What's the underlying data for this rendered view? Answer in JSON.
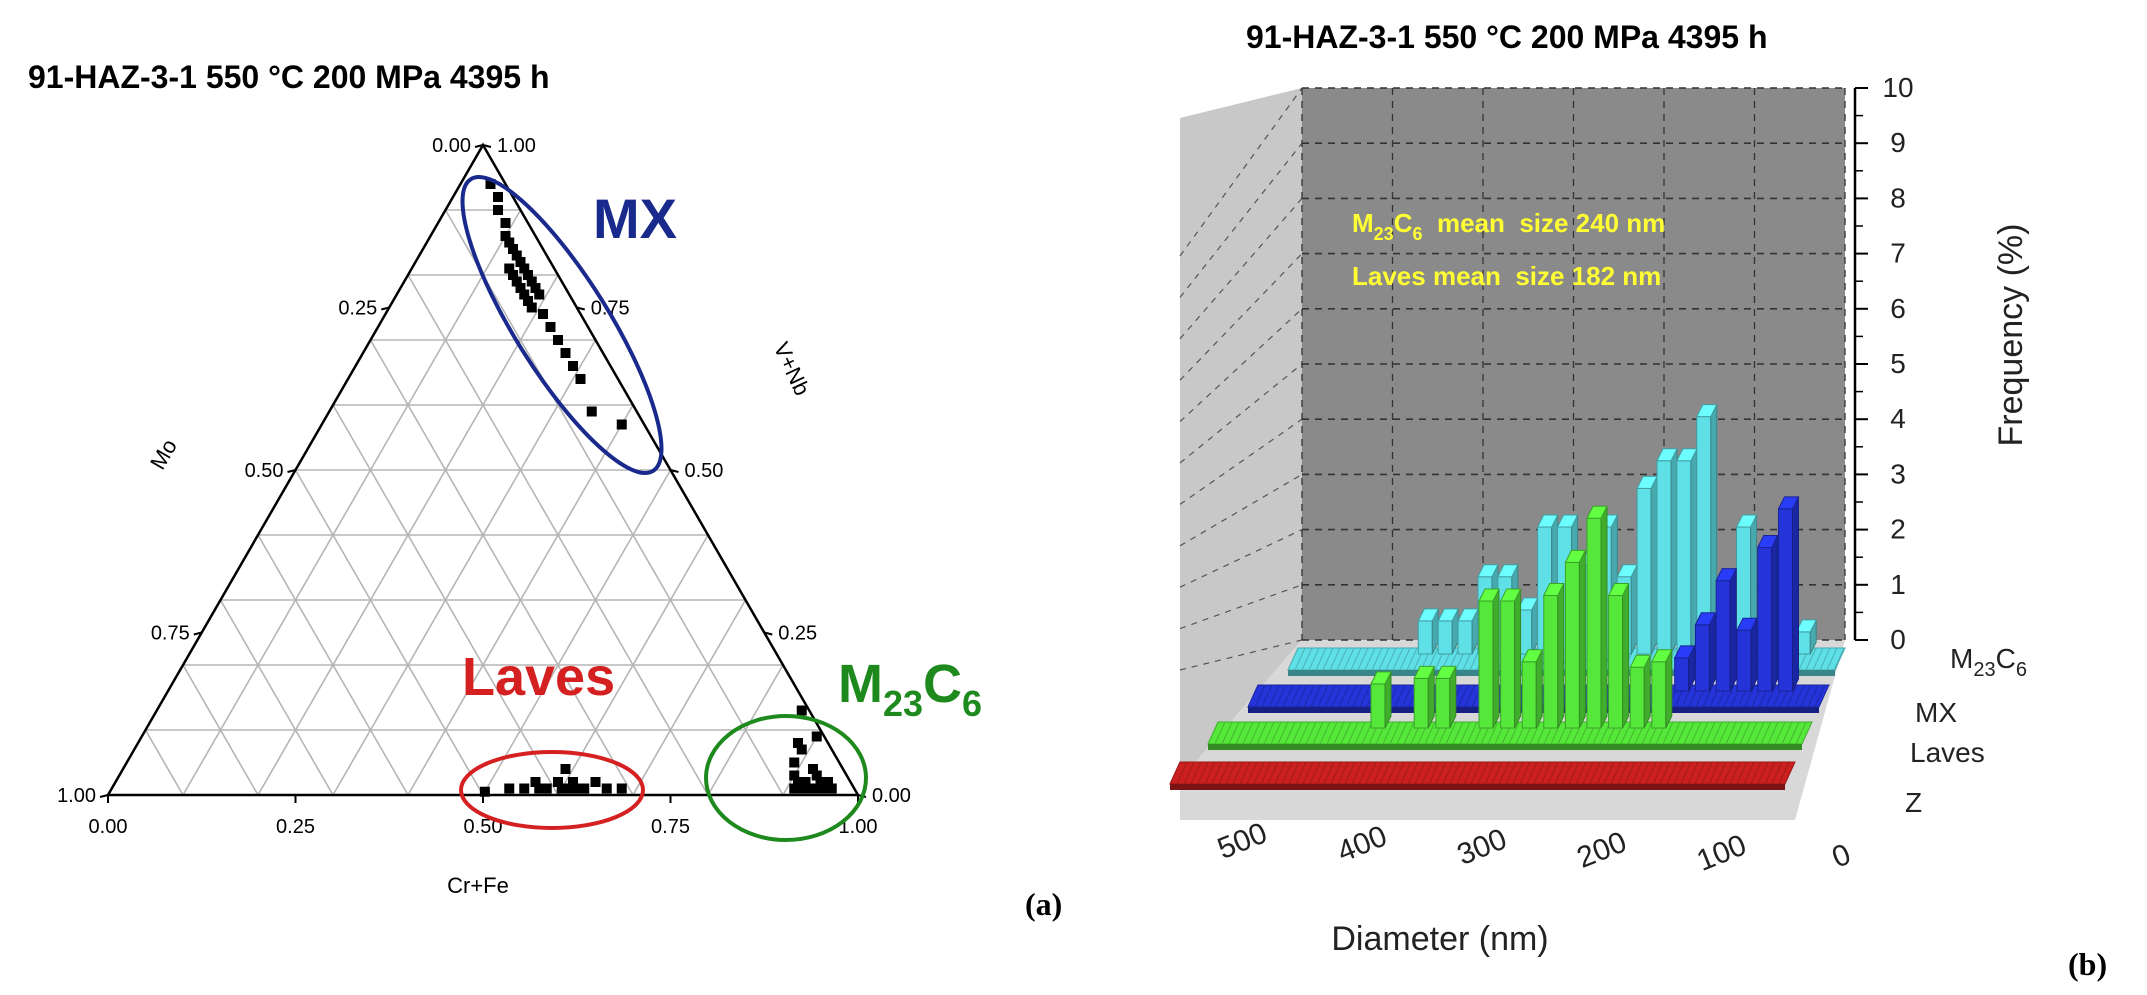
{
  "chart_data": [
    {
      "type": "ternary-scatter",
      "panel_label": "(a)",
      "title": "91-HAZ-3-1 550 °C 200 MPa 4395 h",
      "axes": {
        "bottom": "Cr+Fe",
        "left": "Mo",
        "right": "V+Nb",
        "range": [
          0,
          1
        ],
        "ticks": [
          "0.00",
          "0.25",
          "0.50",
          "0.75",
          "1.00"
        ]
      },
      "groups": [
        {
          "label": "MX",
          "label_sub": "",
          "color": "#1a2a8c",
          "points": [
            [
              0.04,
              0.94
            ],
            [
              0.06,
              0.92
            ],
            [
              0.07,
              0.9
            ],
            [
              0.09,
              0.88
            ],
            [
              0.1,
              0.86
            ],
            [
              0.11,
              0.85
            ],
            [
              0.12,
              0.84
            ],
            [
              0.13,
              0.83
            ],
            [
              0.14,
              0.82
            ],
            [
              0.15,
              0.81
            ],
            [
              0.13,
              0.81
            ],
            [
              0.16,
              0.8
            ],
            [
              0.14,
              0.8
            ],
            [
              0.17,
              0.79
            ],
            [
              0.15,
              0.79
            ],
            [
              0.16,
              0.78
            ],
            [
              0.18,
              0.78
            ],
            [
              0.17,
              0.77
            ],
            [
              0.19,
              0.77
            ],
            [
              0.18,
              0.76
            ],
            [
              0.19,
              0.75
            ],
            [
              0.21,
              0.74
            ],
            [
              0.23,
              0.72
            ],
            [
              0.25,
              0.7
            ],
            [
              0.27,
              0.68
            ],
            [
              0.29,
              0.66
            ],
            [
              0.31,
              0.64
            ],
            [
              0.35,
              0.59
            ],
            [
              0.4,
              0.57
            ]
          ]
        },
        {
          "label": "Laves",
          "label_sub": "",
          "color": "#d42020",
          "points": [
            [
              0.5,
              0.005
            ],
            [
              0.53,
              0.01
            ],
            [
              0.55,
              0.01
            ],
            [
              0.56,
              0.02
            ],
            [
              0.57,
              0.01
            ],
            [
              0.58,
              0.01
            ],
            [
              0.59,
              0.02
            ],
            [
              0.59,
              0.04
            ],
            [
              0.6,
              0.01
            ],
            [
              0.61,
              0.01
            ],
            [
              0.61,
              0.02
            ],
            [
              0.62,
              0.01
            ],
            [
              0.63,
              0.01
            ],
            [
              0.64,
              0.02
            ],
            [
              0.66,
              0.01
            ],
            [
              0.68,
              0.01
            ]
          ]
        },
        {
          "label": "M",
          "label_sub": "23",
          "label_rest": "C",
          "label_sub2": "6",
          "color": "#1e8a1e",
          "points": [
            [
              0.86,
              0.13
            ],
            [
              0.88,
              0.08
            ],
            [
              0.89,
              0.07
            ],
            [
              0.9,
              0.09
            ],
            [
              0.89,
              0.05
            ],
            [
              0.9,
              0.03
            ],
            [
              0.91,
              0.02
            ],
            [
              0.92,
              0.01
            ],
            [
              0.91,
              0.01
            ],
            [
              0.93,
              0.01
            ],
            [
              0.92,
              0.02
            ],
            [
              0.94,
              0.01
            ],
            [
              0.95,
              0.01
            ],
            [
              0.93,
              0.03
            ],
            [
              0.94,
              0.02
            ],
            [
              0.96,
              0.01
            ],
            [
              0.95,
              0.02
            ],
            [
              0.92,
              0.04
            ]
          ]
        }
      ]
    },
    {
      "type": "bar3d",
      "panel_label": "(b)",
      "title": "91-HAZ-3-1 550 °C 200 MPa 4395 h",
      "xlabel": "Diameter (nm)",
      "ylabel": "Frequency (%)",
      "xlim": [
        0,
        550
      ],
      "x_ticks": [
        "500",
        "400",
        "300",
        "200",
        "100",
        "0"
      ],
      "x_tick_values": [
        500,
        400,
        300,
        200,
        100,
        0
      ],
      "zlim": [
        0,
        10
      ],
      "z_ticks": [
        "0",
        "1",
        "2",
        "3",
        "4",
        "5",
        "6",
        "7",
        "8",
        "9",
        "10"
      ],
      "annotations": [
        {
          "text_main": "M",
          "sub1": "23",
          "mid": "C",
          "sub2": "6",
          "rest": "  mean  size 240 nm"
        },
        {
          "text": "Laves mean  size 182 nm"
        }
      ],
      "categories_x": [
        540,
        520,
        500,
        480,
        460,
        440,
        420,
        400,
        380,
        360,
        340,
        320,
        300,
        280,
        260,
        240,
        220,
        200,
        180,
        160,
        140,
        120,
        100,
        80,
        60,
        40,
        20
      ],
      "series": [
        {
          "name": "M23C6",
          "name_main": "M",
          "name_sub1": "23",
          "name_mid": "C",
          "name_sub2": "6",
          "color": "#5fe0e6",
          "values": [
            0,
            0,
            0,
            0,
            0,
            0,
            0.6,
            0.6,
            0.6,
            1.4,
            1.4,
            0.8,
            2.3,
            2.3,
            1.6,
            2.3,
            1.4,
            3.0,
            3.5,
            3.5,
            4.3,
            0.8,
            2.3,
            0.6,
            0.6,
            0.4,
            0
          ]
        },
        {
          "name": "MX",
          "color": "#2434d8",
          "values": [
            0,
            0,
            0,
            0,
            0,
            0,
            0,
            0,
            0,
            0,
            0,
            0,
            0,
            0,
            0,
            0,
            0,
            0,
            0,
            0,
            0.6,
            1.2,
            2.0,
            1.1,
            2.6,
            3.3,
            0
          ]
        },
        {
          "name": "Laves",
          "color": "#55e83a",
          "values": [
            0,
            0,
            0,
            0,
            0,
            0,
            0,
            0.8,
            0,
            0.9,
            0.9,
            0,
            2.3,
            2.3,
            1.2,
            2.4,
            3.0,
            3.8,
            2.4,
            1.1,
            1.2,
            0,
            0,
            0,
            0,
            0,
            0
          ]
        },
        {
          "name": "Z",
          "color": "#cc2020",
          "values": [
            0,
            0,
            0,
            0,
            0,
            0,
            0,
            0,
            0,
            0,
            0,
            0,
            0,
            0,
            0,
            0,
            0,
            0,
            0,
            0,
            0,
            0,
            0,
            0,
            0,
            0,
            0
          ]
        }
      ]
    }
  ]
}
